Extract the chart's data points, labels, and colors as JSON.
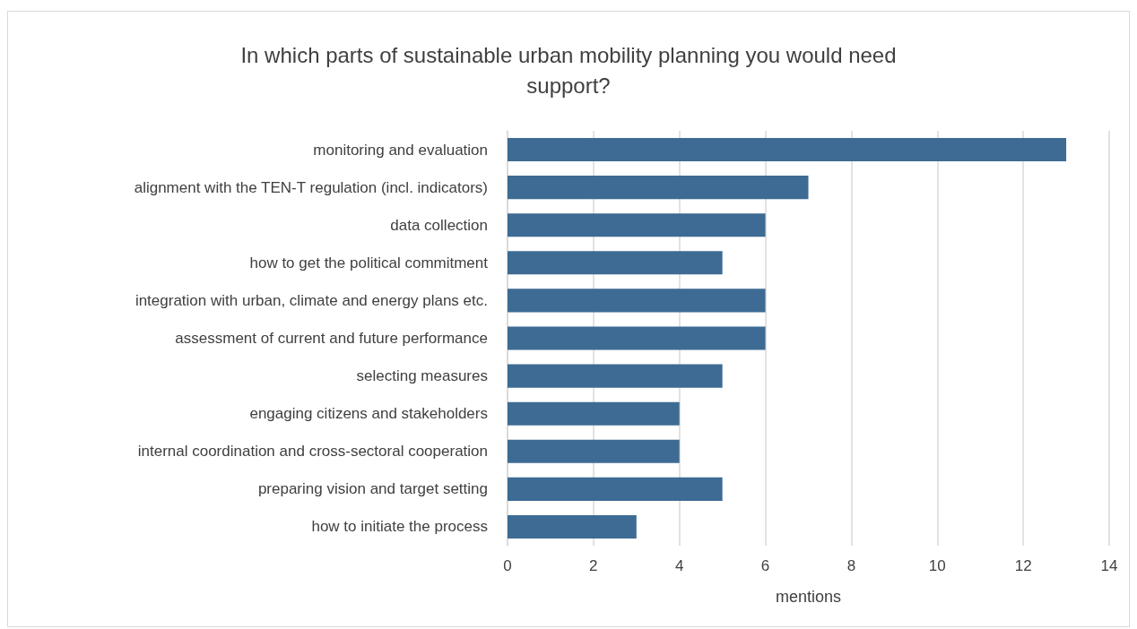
{
  "chart_data": {
    "type": "bar",
    "orientation": "horizontal",
    "title": "In which parts of sustainable urban mobility planning you would need\nsupport?",
    "xlabel": "mentions",
    "categories": [
      "monitoring and evaluation",
      "alignment with the TEN-T regulation (incl. indicators)",
      "data collection",
      "how to get the political commitment",
      "integration with urban, climate and energy plans etc.",
      "assessment of current and future performance",
      "selecting measures",
      "engaging citizens and stakeholders",
      "internal coordination and cross-sectoral cooperation",
      "preparing vision and target setting",
      "how to initiate the process"
    ],
    "values": [
      13,
      7,
      6,
      5,
      6,
      6,
      5,
      4,
      4,
      5,
      3
    ],
    "color": "#3d6b93",
    "xlim": [
      0,
      14
    ],
    "xticks": [
      0,
      2,
      4,
      6,
      8,
      10,
      12,
      14
    ],
    "grid": "x"
  }
}
